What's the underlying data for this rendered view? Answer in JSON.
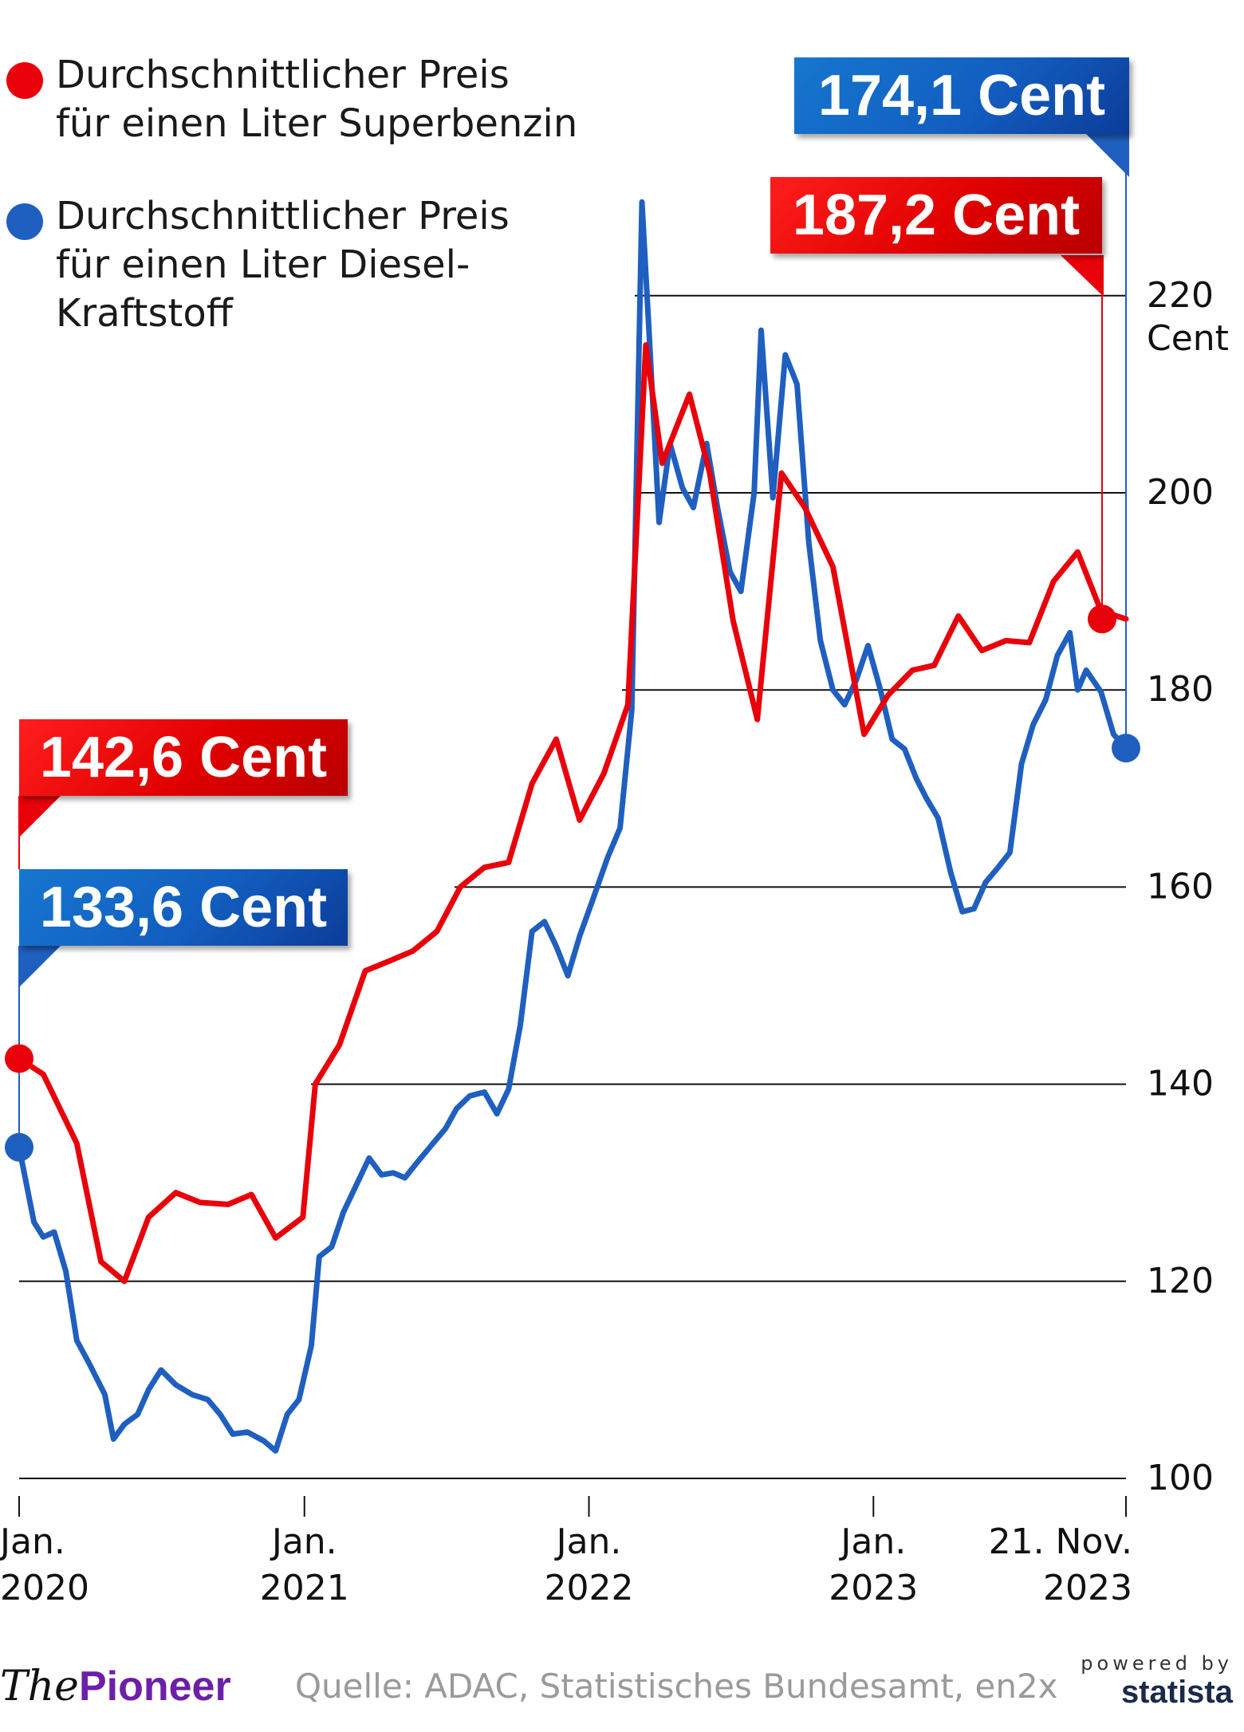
{
  "legend": {
    "super_line1": "Durchschnittlicher Preis",
    "super_line2": "für einen Liter Superbenzin",
    "diesel_line1": "Durchschnittlicher Preis",
    "diesel_line2": "für einen Liter Diesel-",
    "diesel_line3": "Kraftstoff"
  },
  "callouts": {
    "diesel_end": "174,1 Cent",
    "super_end": "187,2 Cent",
    "super_start": "142,6 Cent",
    "diesel_start": "133,6 Cent"
  },
  "colors": {
    "super": "#e8000a",
    "diesel": "#1f5fbf",
    "brand": "#6c1fa8"
  },
  "footer": {
    "brand_the": "The",
    "brand_pioneer": "Pioneer",
    "source": "Quelle: ADAC, Statistisches Bundesamt, en2x",
    "powered": "powered by",
    "statista": "statista"
  },
  "chart_data": {
    "type": "line",
    "y_unit": "Cent",
    "ylim": [
      100,
      230
    ],
    "y_ticks": [
      100,
      120,
      140,
      160,
      180,
      200,
      220
    ],
    "y_tick_labels": [
      "100",
      "120",
      "140",
      "160",
      "180",
      "200",
      "220"
    ],
    "grid": true,
    "legend": "top-left",
    "x_ticks": [
      {
        "x": "2020-01-01",
        "line1": "Jan.",
        "line2": "2020"
      },
      {
        "x": "2021-01-01",
        "line1": "Jan.",
        "line2": "2021"
      },
      {
        "x": "2022-01-01",
        "line1": "Jan.",
        "line2": "2022"
      },
      {
        "x": "2023-01-01",
        "line1": "Jan.",
        "line2": "2023"
      },
      {
        "x": "2023-11-21",
        "line1": "21. Nov.",
        "line2": "2023"
      }
    ],
    "series": [
      {
        "name": "Durchschnittlicher Preis für einen Liter Superbenzin",
        "color": "#e8000a",
        "points": [
          [
            "2020-01-01",
            142.6
          ],
          [
            "2020-02-01",
            141.0
          ],
          [
            "2020-03-15",
            134.0
          ],
          [
            "2020-04-15",
            122.0
          ],
          [
            "2020-05-15",
            120.0
          ],
          [
            "2020-06-15",
            126.5
          ],
          [
            "2020-07-20",
            129.0
          ],
          [
            "2020-08-20",
            128.0
          ],
          [
            "2020-09-25",
            127.8
          ],
          [
            "2020-10-25",
            128.8
          ],
          [
            "2020-11-25",
            124.4
          ],
          [
            "2020-12-30",
            126.5
          ],
          [
            "2021-01-15",
            140.0
          ],
          [
            "2021-02-15",
            144.0
          ],
          [
            "2021-03-20",
            151.5
          ],
          [
            "2021-04-20",
            152.5
          ],
          [
            "2021-05-20",
            153.5
          ],
          [
            "2021-06-20",
            155.5
          ],
          [
            "2021-07-20",
            160.0
          ],
          [
            "2021-08-20",
            162.0
          ],
          [
            "2021-09-20",
            162.5
          ],
          [
            "2021-10-20",
            170.5
          ],
          [
            "2021-11-20",
            175.0
          ],
          [
            "2021-12-20",
            166.8
          ],
          [
            "2022-01-20",
            171.5
          ],
          [
            "2022-02-20",
            178.5
          ],
          [
            "2022-03-15",
            215.0
          ],
          [
            "2022-04-05",
            203.0
          ],
          [
            "2022-05-10",
            210.0
          ],
          [
            "2022-06-05",
            202.0
          ],
          [
            "2022-07-05",
            187.0
          ],
          [
            "2022-08-05",
            177.0
          ],
          [
            "2022-09-05",
            202.0
          ],
          [
            "2022-10-05",
            198.5
          ],
          [
            "2022-11-10",
            192.5
          ],
          [
            "2022-12-20",
            175.5
          ],
          [
            "2023-01-20",
            179.5
          ],
          [
            "2023-02-20",
            182.0
          ],
          [
            "2023-03-20",
            182.5
          ],
          [
            "2023-04-20",
            187.5
          ],
          [
            "2023-05-20",
            184.0
          ],
          [
            "2023-06-20",
            185.0
          ],
          [
            "2023-07-20",
            184.8
          ],
          [
            "2023-08-20",
            191.0
          ],
          [
            "2023-09-20",
            194.0
          ],
          [
            "2023-10-20",
            188.0
          ],
          [
            "2023-11-21",
            187.2
          ]
        ]
      },
      {
        "name": "Durchschnittlicher Preis für einen Liter Diesel-Kraftstoff",
        "color": "#1f5fbf",
        "points": [
          [
            "2020-01-01",
            133.6
          ],
          [
            "2020-01-10",
            130.0
          ],
          [
            "2020-01-20",
            126.0
          ],
          [
            "2020-02-01",
            124.5
          ],
          [
            "2020-02-15",
            125.0
          ],
          [
            "2020-03-01",
            121.0
          ],
          [
            "2020-03-15",
            114.0
          ],
          [
            "2020-04-01",
            111.5
          ],
          [
            "2020-04-20",
            108.5
          ],
          [
            "2020-05-01",
            104.0
          ],
          [
            "2020-05-15",
            105.5
          ],
          [
            "2020-06-01",
            106.5
          ],
          [
            "2020-06-15",
            109.0
          ],
          [
            "2020-07-01",
            111.0
          ],
          [
            "2020-07-20",
            109.5
          ],
          [
            "2020-08-10",
            108.5
          ],
          [
            "2020-08-30",
            108.0
          ],
          [
            "2020-09-15",
            106.5
          ],
          [
            "2020-10-01",
            104.5
          ],
          [
            "2020-10-20",
            104.7
          ],
          [
            "2020-11-10",
            103.8
          ],
          [
            "2020-11-25",
            102.8
          ],
          [
            "2020-12-10",
            106.5
          ],
          [
            "2020-12-25",
            108.0
          ],
          [
            "2021-01-10",
            113.5
          ],
          [
            "2021-01-20",
            122.5
          ],
          [
            "2021-02-05",
            123.5
          ],
          [
            "2021-02-20",
            127.0
          ],
          [
            "2021-03-10",
            130.0
          ],
          [
            "2021-03-25",
            132.5
          ],
          [
            "2021-04-10",
            130.8
          ],
          [
            "2021-04-25",
            131.0
          ],
          [
            "2021-05-10",
            130.5
          ],
          [
            "2021-05-25",
            132.0
          ],
          [
            "2021-06-15",
            134.0
          ],
          [
            "2021-07-01",
            135.5
          ],
          [
            "2021-07-15",
            137.5
          ],
          [
            "2021-08-01",
            138.8
          ],
          [
            "2021-08-20",
            139.2
          ],
          [
            "2021-09-05",
            137.0
          ],
          [
            "2021-09-20",
            139.5
          ],
          [
            "2021-10-05",
            146.0
          ],
          [
            "2021-10-20",
            155.5
          ],
          [
            "2021-11-05",
            156.5
          ],
          [
            "2021-11-20",
            154.0
          ],
          [
            "2021-12-05",
            151.0
          ],
          [
            "2021-12-20",
            155.0
          ],
          [
            "2022-01-05",
            158.5
          ],
          [
            "2022-01-25",
            163.0
          ],
          [
            "2022-02-10",
            166.0
          ],
          [
            "2022-02-25",
            178.0
          ],
          [
            "2022-03-10",
            229.5
          ],
          [
            "2022-03-20",
            215.0
          ],
          [
            "2022-04-01",
            197.0
          ],
          [
            "2022-04-15",
            205.0
          ],
          [
            "2022-05-01",
            200.5
          ],
          [
            "2022-05-15",
            198.5
          ],
          [
            "2022-06-01",
            205.0
          ],
          [
            "2022-06-15",
            198.5
          ],
          [
            "2022-07-01",
            192.0
          ],
          [
            "2022-07-15",
            190.0
          ],
          [
            "2022-08-01",
            200.0
          ],
          [
            "2022-08-10",
            216.5
          ],
          [
            "2022-08-25",
            199.5
          ],
          [
            "2022-09-10",
            214.0
          ],
          [
            "2022-09-25",
            211.0
          ],
          [
            "2022-10-10",
            195.0
          ],
          [
            "2022-10-25",
            185.0
          ],
          [
            "2022-11-10",
            180.0
          ],
          [
            "2022-11-25",
            178.5
          ],
          [
            "2022-12-10",
            181.0
          ],
          [
            "2022-12-25",
            184.5
          ],
          [
            "2023-01-10",
            180.0
          ],
          [
            "2023-01-25",
            175.0
          ],
          [
            "2023-02-10",
            174.0
          ],
          [
            "2023-02-25",
            171.0
          ],
          [
            "2023-03-10",
            169.0
          ],
          [
            "2023-03-25",
            167.0
          ],
          [
            "2023-04-10",
            161.5
          ],
          [
            "2023-04-25",
            157.5
          ],
          [
            "2023-05-10",
            157.8
          ],
          [
            "2023-05-25",
            160.5
          ],
          [
            "2023-06-10",
            162.0
          ],
          [
            "2023-06-25",
            163.5
          ],
          [
            "2023-07-10",
            172.5
          ],
          [
            "2023-07-25",
            176.5
          ],
          [
            "2023-08-10",
            179.0
          ],
          [
            "2023-08-25",
            183.5
          ],
          [
            "2023-09-10",
            185.8
          ],
          [
            "2023-09-20",
            180.0
          ],
          [
            "2023-10-01",
            182.0
          ],
          [
            "2023-10-20",
            179.8
          ],
          [
            "2023-11-05",
            175.5
          ],
          [
            "2023-11-21",
            174.1
          ]
        ]
      }
    ]
  }
}
